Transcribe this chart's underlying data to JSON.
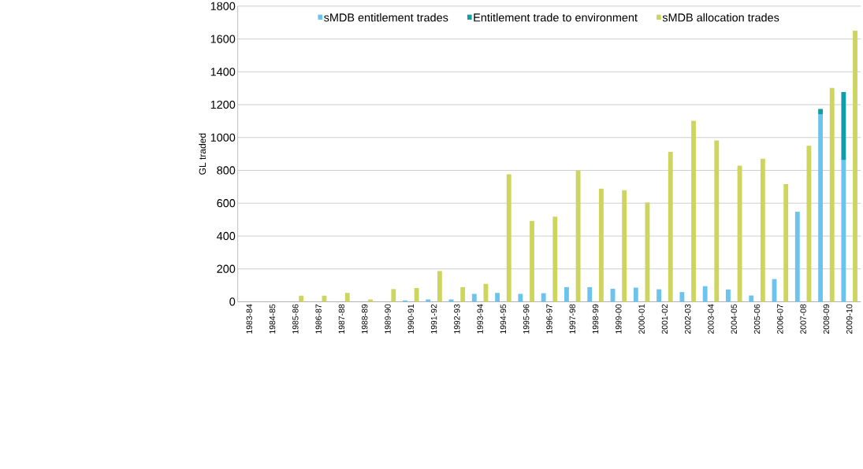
{
  "chart_data": {
    "type": "bar",
    "ylabel": "GL traded",
    "categories": [
      "1983-84",
      "1984-85",
      "1985-86",
      "1986-87",
      "1987-88",
      "1988-89",
      "1989-90",
      "1990-91",
      "1991-92",
      "1992-93",
      "1993-94",
      "1994-95",
      "1995-96",
      "1996-97",
      "1997-98",
      "1998-99",
      "1999-00",
      "2000-01",
      "2001-02",
      "2002-03",
      "2003-04",
      "2004-05",
      "2005-06",
      "2006-07",
      "2007-08",
      "2008-09",
      "2009-10"
    ],
    "series": [
      {
        "name": "sMDB entitlement trades",
        "color": "#6cc4ee",
        "values": [
          null,
          null,
          null,
          null,
          null,
          null,
          null,
          8,
          14,
          14,
          48,
          54,
          48,
          52,
          89,
          89,
          79,
          86,
          76,
          59,
          95,
          75,
          38,
          138,
          548,
          1142,
          863
        ]
      },
      {
        "name": "Entitlement trade to environment",
        "color": "#0f9ea7",
        "values": [
          null,
          null,
          null,
          null,
          null,
          null,
          null,
          null,
          null,
          null,
          null,
          null,
          null,
          null,
          null,
          null,
          null,
          null,
          null,
          null,
          null,
          null,
          null,
          null,
          null,
          32,
          414
        ],
        "base": [
          null,
          null,
          null,
          null,
          null,
          null,
          null,
          null,
          null,
          null,
          null,
          null,
          null,
          null,
          null,
          null,
          null,
          null,
          null,
          null,
          null,
          null,
          null,
          null,
          null,
          1142,
          863
        ]
      },
      {
        "name": "sMDB allocation trades",
        "color": "#cdd55f",
        "values": [
          null,
          null,
          37,
          37,
          54,
          14,
          77,
          84,
          187,
          89,
          109,
          776,
          492,
          518,
          799,
          688,
          679,
          604,
          912,
          1102,
          982,
          829,
          871,
          716,
          950,
          1302,
          1651
        ]
      }
    ],
    "ylim": [
      0,
      1800
    ],
    "yticks": [
      0,
      200,
      400,
      600,
      800,
      1000,
      1200,
      1400,
      1600,
      1800
    ],
    "grid": "y",
    "legend": "top"
  }
}
